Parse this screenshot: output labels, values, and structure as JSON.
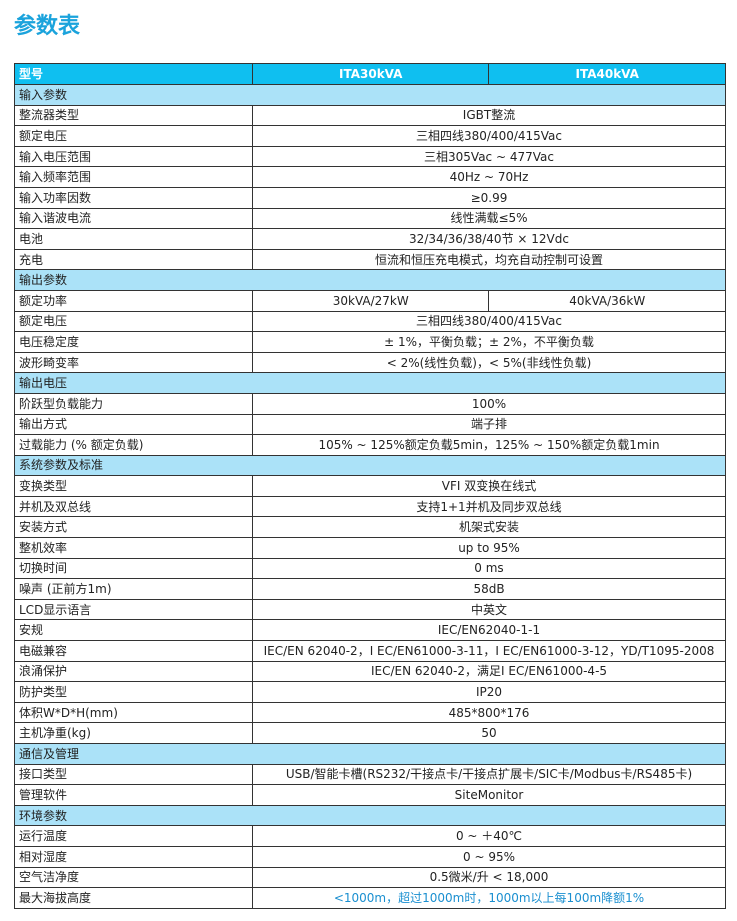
{
  "title": "参数表",
  "header": {
    "label": "型号",
    "col1": "ITA30kVA",
    "col2": "ITA40kVA"
  },
  "rows": [
    {
      "type": "sec",
      "label": "输入参数"
    },
    {
      "label": "整流器类型",
      "value": "IGBT整流"
    },
    {
      "label": "额定电压",
      "value": "三相四线380/400/415Vac"
    },
    {
      "label": "输入电压范围",
      "value": "三相305Vac ~ 477Vac"
    },
    {
      "label": "输入频率范围",
      "value": "40Hz ~ 70Hz"
    },
    {
      "label": "输入功率因数",
      "value": "≥0.99"
    },
    {
      "label": "输入谐波电流",
      "value": "线性满载≤5%"
    },
    {
      "label": "电池",
      "value": "32/34/36/38/40节 × 12Vdc"
    },
    {
      "label": "充电",
      "value": "恒流和恒压充电模式，均充自动控制可设置"
    },
    {
      "type": "sec",
      "label": "输出参数"
    },
    {
      "label": "额定功率",
      "value": "30kVA/27kW",
      "value2": "40kVA/36kW"
    },
    {
      "label": "额定电压",
      "value": "三相四线380/400/415Vac"
    },
    {
      "label": "电压稳定度",
      "value": "± 1%，平衡负载；± 2%，不平衡负载"
    },
    {
      "label": "波形畸变率",
      "value": "< 2%(线性负载)，< 5%(非线性负载)"
    },
    {
      "type": "sec",
      "label": "输出电压"
    },
    {
      "label": "阶跃型负载能力",
      "value": "100%"
    },
    {
      "label": "输出方式",
      "value": "端子排"
    },
    {
      "label": "过载能力 (% 额定负载)",
      "value": "105% ~ 125%额定负载5min，125% ~ 150%额定负载1min"
    },
    {
      "type": "sec",
      "label": "系统参数及标准"
    },
    {
      "label": "变换类型",
      "value": "VFI 双变换在线式"
    },
    {
      "label": "并机及双总线",
      "value": "支持1+1并机及同步双总线"
    },
    {
      "label": "安装方式",
      "value": "机架式安装"
    },
    {
      "label": "整机效率",
      "value": "up to 95%"
    },
    {
      "label": "切换时间",
      "value": "0 ms"
    },
    {
      "label": "噪声 (正前方1m)",
      "value": "58dB"
    },
    {
      "label": "LCD显示语言",
      "value": "中英文"
    },
    {
      "label": "安规",
      "value": "IEC/EN62040-1-1"
    },
    {
      "label": "电磁兼容",
      "value": "IEC/EN 62040-2，I EC/EN61000-3-11，I EC/EN61000-3-12，YD/T1095-2008"
    },
    {
      "label": "浪涌保护",
      "value": "IEC/EN 62040-2，满足I EC/EN61000-4-5"
    },
    {
      "label": "防护类型",
      "value": "IP20"
    },
    {
      "label": "体积W*D*H(mm)",
      "value": "485*800*176"
    },
    {
      "label": "主机净重(kg)",
      "value": "50"
    },
    {
      "type": "sec",
      "label": "通信及管理"
    },
    {
      "label": "接口类型",
      "value": "USB/智能卡槽(RS232/干接点卡/干接点扩展卡/SIC卡/Modbus卡/RS485卡)"
    },
    {
      "label": "管理软件",
      "value": "SiteMonitor"
    },
    {
      "type": "sec",
      "label": "环境参数"
    },
    {
      "label": "运行温度",
      "value": "0 ~ ＋40℃"
    },
    {
      "label": "相对湿度",
      "value": "0 ~ 95%"
    },
    {
      "label": "空气洁净度",
      "value": "0.5微米/升 < 18,000"
    },
    {
      "label": "最大海拔高度",
      "value": "<1000m，超过1000m时，1000m以上每100m降额1%"
    }
  ]
}
